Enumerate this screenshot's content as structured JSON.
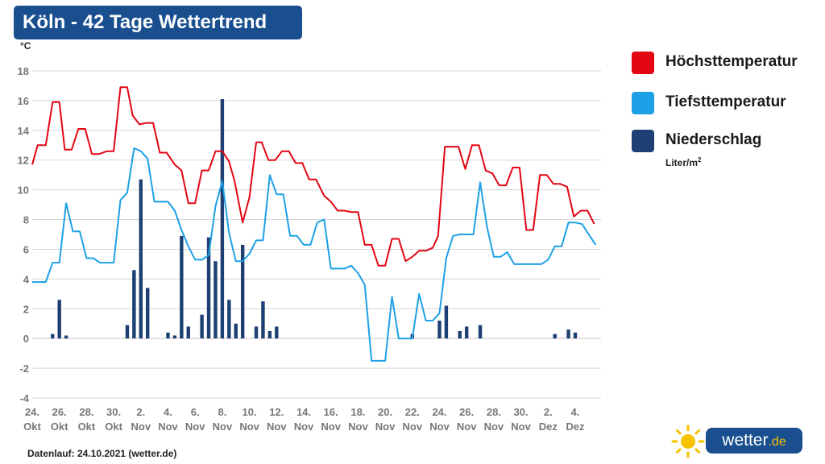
{
  "title": "Köln - 42 Tage Wettertrend",
  "footer": "Datenlauf: 24.10.2021 (wetter.de)",
  "logo": {
    "text": "wetter",
    "suffix": ".de"
  },
  "legend": [
    {
      "label": "Höchsttemperatur",
      "color": "#e30613"
    },
    {
      "label": "Tiefsttemperatur",
      "color": "#1ea0e6"
    },
    {
      "label": "Niederschlag",
      "color": "#1d3f73"
    }
  ],
  "precip_unit": "Liter/m",
  "precip_unit_sup": "2",
  "chart_data": {
    "type": "line",
    "ylabel": "°C",
    "ylim": [
      -4,
      18
    ],
    "yticks": [
      -4,
      -2,
      0,
      2,
      4,
      6,
      8,
      10,
      12,
      14,
      16,
      18
    ],
    "grid": true,
    "xlim": [
      0,
      41.9
    ],
    "x_tick_labels": [
      {
        "day": "24.",
        "month": "Okt",
        "x": 0
      },
      {
        "day": "26.",
        "month": "Okt",
        "x": 2
      },
      {
        "day": "28.",
        "month": "Okt",
        "x": 4
      },
      {
        "day": "30.",
        "month": "Okt",
        "x": 6
      },
      {
        "day": "2.",
        "month": "Nov",
        "x": 8
      },
      {
        "day": "4.",
        "month": "Nov",
        "x": 10
      },
      {
        "day": "6.",
        "month": "Nov",
        "x": 12
      },
      {
        "day": "8.",
        "month": "Nov",
        "x": 14
      },
      {
        "day": "10.",
        "month": "Nov",
        "x": 16
      },
      {
        "day": "12.",
        "month": "Nov",
        "x": 18
      },
      {
        "day": "14.",
        "month": "Nov",
        "x": 20
      },
      {
        "day": "16.",
        "month": "Nov",
        "x": 22
      },
      {
        "day": "18.",
        "month": "Nov",
        "x": 24
      },
      {
        "day": "20.",
        "month": "Nov",
        "x": 26
      },
      {
        "day": "22.",
        "month": "Nov",
        "x": 28
      },
      {
        "day": "24.",
        "month": "Nov",
        "x": 30
      },
      {
        "day": "26.",
        "month": "Nov",
        "x": 32
      },
      {
        "day": "28.",
        "month": "Nov",
        "x": 34
      },
      {
        "day": "30.",
        "month": "Nov",
        "x": 36
      },
      {
        "day": "2.",
        "month": "Dez",
        "x": 38
      },
      {
        "day": "4.",
        "month": "Dez",
        "x": 40
      }
    ],
    "series": [
      {
        "name": "Höchsttemperatur",
        "color": "#e30613",
        "kind": "line",
        "points": [
          [
            0,
            11.7
          ],
          [
            0.4,
            13
          ],
          [
            1,
            13
          ],
          [
            1.5,
            15.9
          ],
          [
            2,
            15.9
          ],
          [
            2.4,
            12.7
          ],
          [
            2.9,
            12.7
          ],
          [
            3.4,
            14.1
          ],
          [
            3.9,
            14.1
          ],
          [
            4.4,
            12.4
          ],
          [
            4.9,
            12.4
          ],
          [
            5.5,
            12.6
          ],
          [
            6,
            12.6
          ],
          [
            6.5,
            16.9
          ],
          [
            7,
            16.9
          ],
          [
            7.4,
            15
          ],
          [
            7.9,
            14.4
          ],
          [
            8.4,
            14.5
          ],
          [
            8.9,
            14.5
          ],
          [
            9.4,
            12.5
          ],
          [
            9.9,
            12.5
          ],
          [
            10.5,
            11.7
          ],
          [
            11,
            11.3
          ],
          [
            11.5,
            9.1
          ],
          [
            12,
            9.1
          ],
          [
            12.5,
            11.3
          ],
          [
            13,
            11.3
          ],
          [
            13.5,
            12.6
          ],
          [
            14,
            12.6
          ],
          [
            14.5,
            11.9
          ],
          [
            14.9,
            10.6
          ],
          [
            15.5,
            7.8
          ],
          [
            16,
            9.5
          ],
          [
            16.5,
            13.2
          ],
          [
            16.9,
            13.2
          ],
          [
            17.4,
            12
          ],
          [
            17.9,
            12
          ],
          [
            18.4,
            12.6
          ],
          [
            18.9,
            12.6
          ],
          [
            19.4,
            11.8
          ],
          [
            19.9,
            11.8
          ],
          [
            20.4,
            10.7
          ],
          [
            20.9,
            10.7
          ],
          [
            21.5,
            9.6
          ],
          [
            22,
            9.2
          ],
          [
            22.5,
            8.6
          ],
          [
            23,
            8.6
          ],
          [
            23.5,
            8.5
          ],
          [
            24,
            8.5
          ],
          [
            24.5,
            6.3
          ],
          [
            25,
            6.3
          ],
          [
            25.5,
            4.9
          ],
          [
            26,
            4.9
          ],
          [
            26.5,
            6.7
          ],
          [
            27,
            6.7
          ],
          [
            27.5,
            5.2
          ],
          [
            28,
            5.5
          ],
          [
            28.5,
            5.9
          ],
          [
            29,
            5.9
          ],
          [
            29.5,
            6.1
          ],
          [
            29.9,
            6.9
          ],
          [
            30.4,
            12.9
          ],
          [
            30.9,
            12.9
          ],
          [
            31.4,
            12.9
          ],
          [
            31.9,
            11.4
          ],
          [
            32.4,
            13
          ],
          [
            32.9,
            13
          ],
          [
            33.4,
            11.3
          ],
          [
            33.9,
            11.1
          ],
          [
            34.4,
            10.3
          ],
          [
            34.9,
            10.3
          ],
          [
            35.4,
            11.5
          ],
          [
            35.9,
            11.5
          ],
          [
            36.4,
            7.3
          ],
          [
            36.9,
            7.3
          ],
          [
            37.4,
            11
          ],
          [
            37.9,
            11
          ],
          [
            38.4,
            10.4
          ],
          [
            38.9,
            10.4
          ],
          [
            39.4,
            10.2
          ],
          [
            39.9,
            8.2
          ],
          [
            40.4,
            8.6
          ],
          [
            40.9,
            8.6
          ],
          [
            41.4,
            7.7
          ]
        ]
      },
      {
        "name": "Tiefsttemperatur",
        "color": "#1ea0e6",
        "kind": "line",
        "points": [
          [
            0,
            3.8
          ],
          [
            1,
            3.8
          ],
          [
            1.5,
            5.1
          ],
          [
            2,
            5.1
          ],
          [
            2.5,
            9.1
          ],
          [
            3,
            7.2
          ],
          [
            3.5,
            7.2
          ],
          [
            4,
            5.4
          ],
          [
            4.5,
            5.4
          ],
          [
            5,
            5.1
          ],
          [
            5.5,
            5.1
          ],
          [
            6,
            5.1
          ],
          [
            6.5,
            9.3
          ],
          [
            7,
            9.8
          ],
          [
            7.5,
            12.8
          ],
          [
            8,
            12.6
          ],
          [
            8.5,
            12.1
          ],
          [
            9,
            9.2
          ],
          [
            9.5,
            9.2
          ],
          [
            10,
            9.2
          ],
          [
            10.5,
            8.6
          ],
          [
            11,
            7.3
          ],
          [
            11.5,
            6.2
          ],
          [
            12,
            5.3
          ],
          [
            12.5,
            5.3
          ],
          [
            13,
            5.6
          ],
          [
            13.5,
            8.9
          ],
          [
            14,
            10.6
          ],
          [
            14.5,
            7.1
          ],
          [
            15,
            5.2
          ],
          [
            15.5,
            5.2
          ],
          [
            16,
            5.7
          ],
          [
            16.5,
            6.6
          ],
          [
            17,
            6.6
          ],
          [
            17.5,
            11
          ],
          [
            18,
            9.7
          ],
          [
            18.5,
            9.7
          ],
          [
            19,
            6.9
          ],
          [
            19.5,
            6.9
          ],
          [
            20,
            6.3
          ],
          [
            20.5,
            6.3
          ],
          [
            21,
            7.8
          ],
          [
            21.5,
            8
          ],
          [
            22,
            4.7
          ],
          [
            22.5,
            4.7
          ],
          [
            23,
            4.7
          ],
          [
            23.5,
            4.9
          ],
          [
            24,
            4.4
          ],
          [
            24.5,
            3.6
          ],
          [
            25,
            -1.5
          ],
          [
            25.5,
            -1.5
          ],
          [
            26,
            -1.5
          ],
          [
            26.5,
            2.8
          ],
          [
            27,
            0
          ],
          [
            27.5,
            0
          ],
          [
            28,
            0
          ],
          [
            28.5,
            3
          ],
          [
            29,
            1.2
          ],
          [
            29.5,
            1.2
          ],
          [
            30,
            1.7
          ],
          [
            30.5,
            5.4
          ],
          [
            31,
            6.9
          ],
          [
            31.5,
            7
          ],
          [
            32,
            7
          ],
          [
            32.5,
            7
          ],
          [
            33,
            10.5
          ],
          [
            33.5,
            7.5
          ],
          [
            34,
            5.5
          ],
          [
            34.5,
            5.5
          ],
          [
            35,
            5.8
          ],
          [
            35.5,
            5
          ],
          [
            36,
            5
          ],
          [
            36.5,
            5
          ],
          [
            37,
            5
          ],
          [
            37.5,
            5
          ],
          [
            38,
            5.3
          ],
          [
            38.5,
            6.2
          ],
          [
            39,
            6.2
          ],
          [
            39.5,
            7.8
          ],
          [
            40,
            7.8
          ],
          [
            40.5,
            7.7
          ],
          [
            41,
            7
          ],
          [
            41.5,
            6.3
          ]
        ]
      },
      {
        "name": "Niederschlag",
        "color": "#1d3f73",
        "kind": "bar",
        "points": [
          [
            1.5,
            0.3
          ],
          [
            2,
            2.6
          ],
          [
            2.5,
            0.2
          ],
          [
            7,
            0.9
          ],
          [
            7.5,
            4.6
          ],
          [
            8,
            10.7
          ],
          [
            8.5,
            3.4
          ],
          [
            10,
            0.4
          ],
          [
            10.5,
            0.2
          ],
          [
            11,
            6.9
          ],
          [
            11.5,
            0.8
          ],
          [
            12.5,
            1.6
          ],
          [
            13,
            6.8
          ],
          [
            13.5,
            5.2
          ],
          [
            14,
            16.1
          ],
          [
            14.5,
            2.6
          ],
          [
            15,
            1
          ],
          [
            15.5,
            6.3
          ],
          [
            16.5,
            0.8
          ],
          [
            17,
            2.5
          ],
          [
            17.5,
            0.5
          ],
          [
            18,
            0.8
          ],
          [
            28,
            0.3
          ],
          [
            30,
            1.2
          ],
          [
            30.5,
            2.2
          ],
          [
            31.5,
            0.5
          ],
          [
            32,
            0.8
          ],
          [
            33,
            0.9
          ],
          [
            38.5,
            0.3
          ],
          [
            39.5,
            0.6
          ],
          [
            40,
            0.4
          ]
        ]
      }
    ]
  }
}
